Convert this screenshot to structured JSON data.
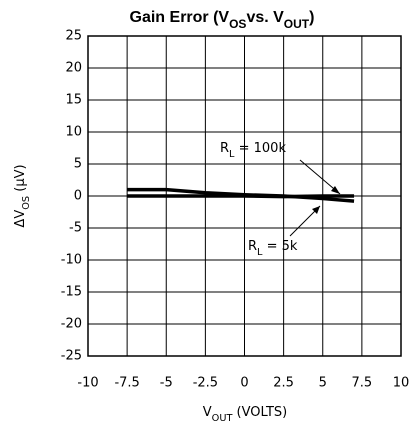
{
  "chart_data": {
    "type": "line",
    "title": [
      "Gain Error (V",
      "OS",
      "vs. V",
      "OUT",
      ")"
    ],
    "ylabel": [
      "ΔV",
      "OS",
      " (μV)"
    ],
    "xlabel": [
      "V",
      "OUT",
      " (VOLTS)"
    ],
    "x": [
      -7.5,
      -5,
      -2.5,
      0,
      2.5,
      5,
      7
    ],
    "series": [
      {
        "name": "RL = 5k",
        "color": "#000000",
        "values": [
          1,
          1,
          0.5,
          0.2,
          0,
          -0.4,
          -0.8
        ]
      },
      {
        "name": "RL = 100k",
        "color": "#000000",
        "values": [
          0,
          0,
          0,
          0,
          -0.1,
          0,
          0
        ]
      }
    ],
    "annotations": [
      {
        "text": [
          "R",
          "L",
          " = 100k"
        ]
      },
      {
        "text": [
          "R",
          "L",
          " = 5k"
        ]
      }
    ],
    "xlim": [
      -10,
      10
    ],
    "xticks": [
      -10,
      -7.5,
      -5,
      -2.5,
      0,
      2.5,
      5,
      7.5,
      10
    ],
    "ylim": [
      -25,
      25
    ],
    "yticks": [
      -25,
      -20,
      -15,
      -10,
      -5,
      0,
      5,
      10,
      15,
      20,
      25
    ],
    "grid": true
  }
}
